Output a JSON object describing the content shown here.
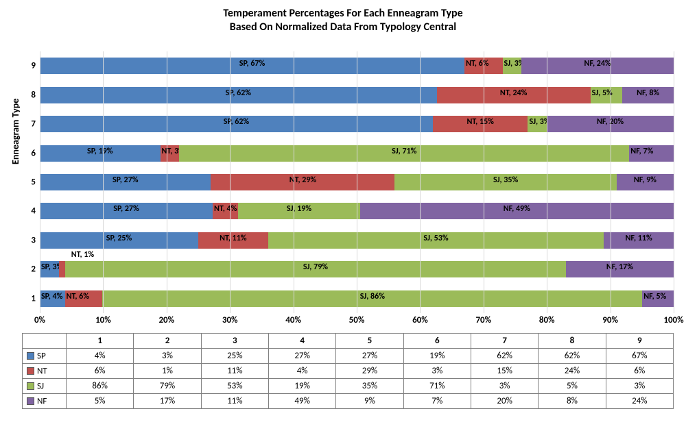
{
  "title_line1": "Temperament Percentages For Each Enneagram Type",
  "title_line2": "Based On Normalized Data From Typology Central",
  "y_axis_label": "Enneagram Type",
  "chart": {
    "type": "stacked-bar-horizontal",
    "xlim": [
      0,
      100
    ],
    "xtick_step": 10,
    "xtick_suffix": "%",
    "grid_color": "#d9d9d9",
    "background_color": "#ffffff",
    "label_fontsize": 12,
    "title_fontsize": 16,
    "series": [
      {
        "key": "SP",
        "name": "SP",
        "color": "#4f81bd"
      },
      {
        "key": "NT",
        "name": "NT",
        "color": "#c0504d"
      },
      {
        "key": "SJ",
        "name": "SJ",
        "color": "#9bbb59"
      },
      {
        "key": "NF",
        "name": "NF",
        "color": "#8064a2"
      }
    ],
    "categories": [
      "1",
      "2",
      "3",
      "4",
      "5",
      "6",
      "7",
      "8",
      "9"
    ],
    "data": {
      "1": {
        "SP": 4,
        "NT": 6,
        "SJ": 86,
        "NF": 5
      },
      "2": {
        "SP": 3,
        "NT": 1,
        "SJ": 79,
        "NF": 17
      },
      "3": {
        "SP": 25,
        "NT": 11,
        "SJ": 53,
        "NF": 11
      },
      "4": {
        "SP": 27,
        "NT": 4,
        "SJ": 19,
        "NF": 49
      },
      "5": {
        "SP": 27,
        "NT": 29,
        "SJ": 35,
        "NF": 9
      },
      "6": {
        "SP": 19,
        "NT": 3,
        "SJ": 71,
        "NF": 7
      },
      "7": {
        "SP": 62,
        "NT": 15,
        "SJ": 3,
        "NF": 20
      },
      "8": {
        "SP": 62,
        "NT": 24,
        "SJ": 5,
        "NF": 8
      },
      "9": {
        "SP": 67,
        "NT": 6,
        "SJ": 3,
        "NF": 24
      }
    },
    "label_overrides": {
      "2": {
        "NT": {
          "text": "NT, 1%",
          "dx": 18,
          "dy": -16,
          "outside": true
        }
      }
    }
  }
}
